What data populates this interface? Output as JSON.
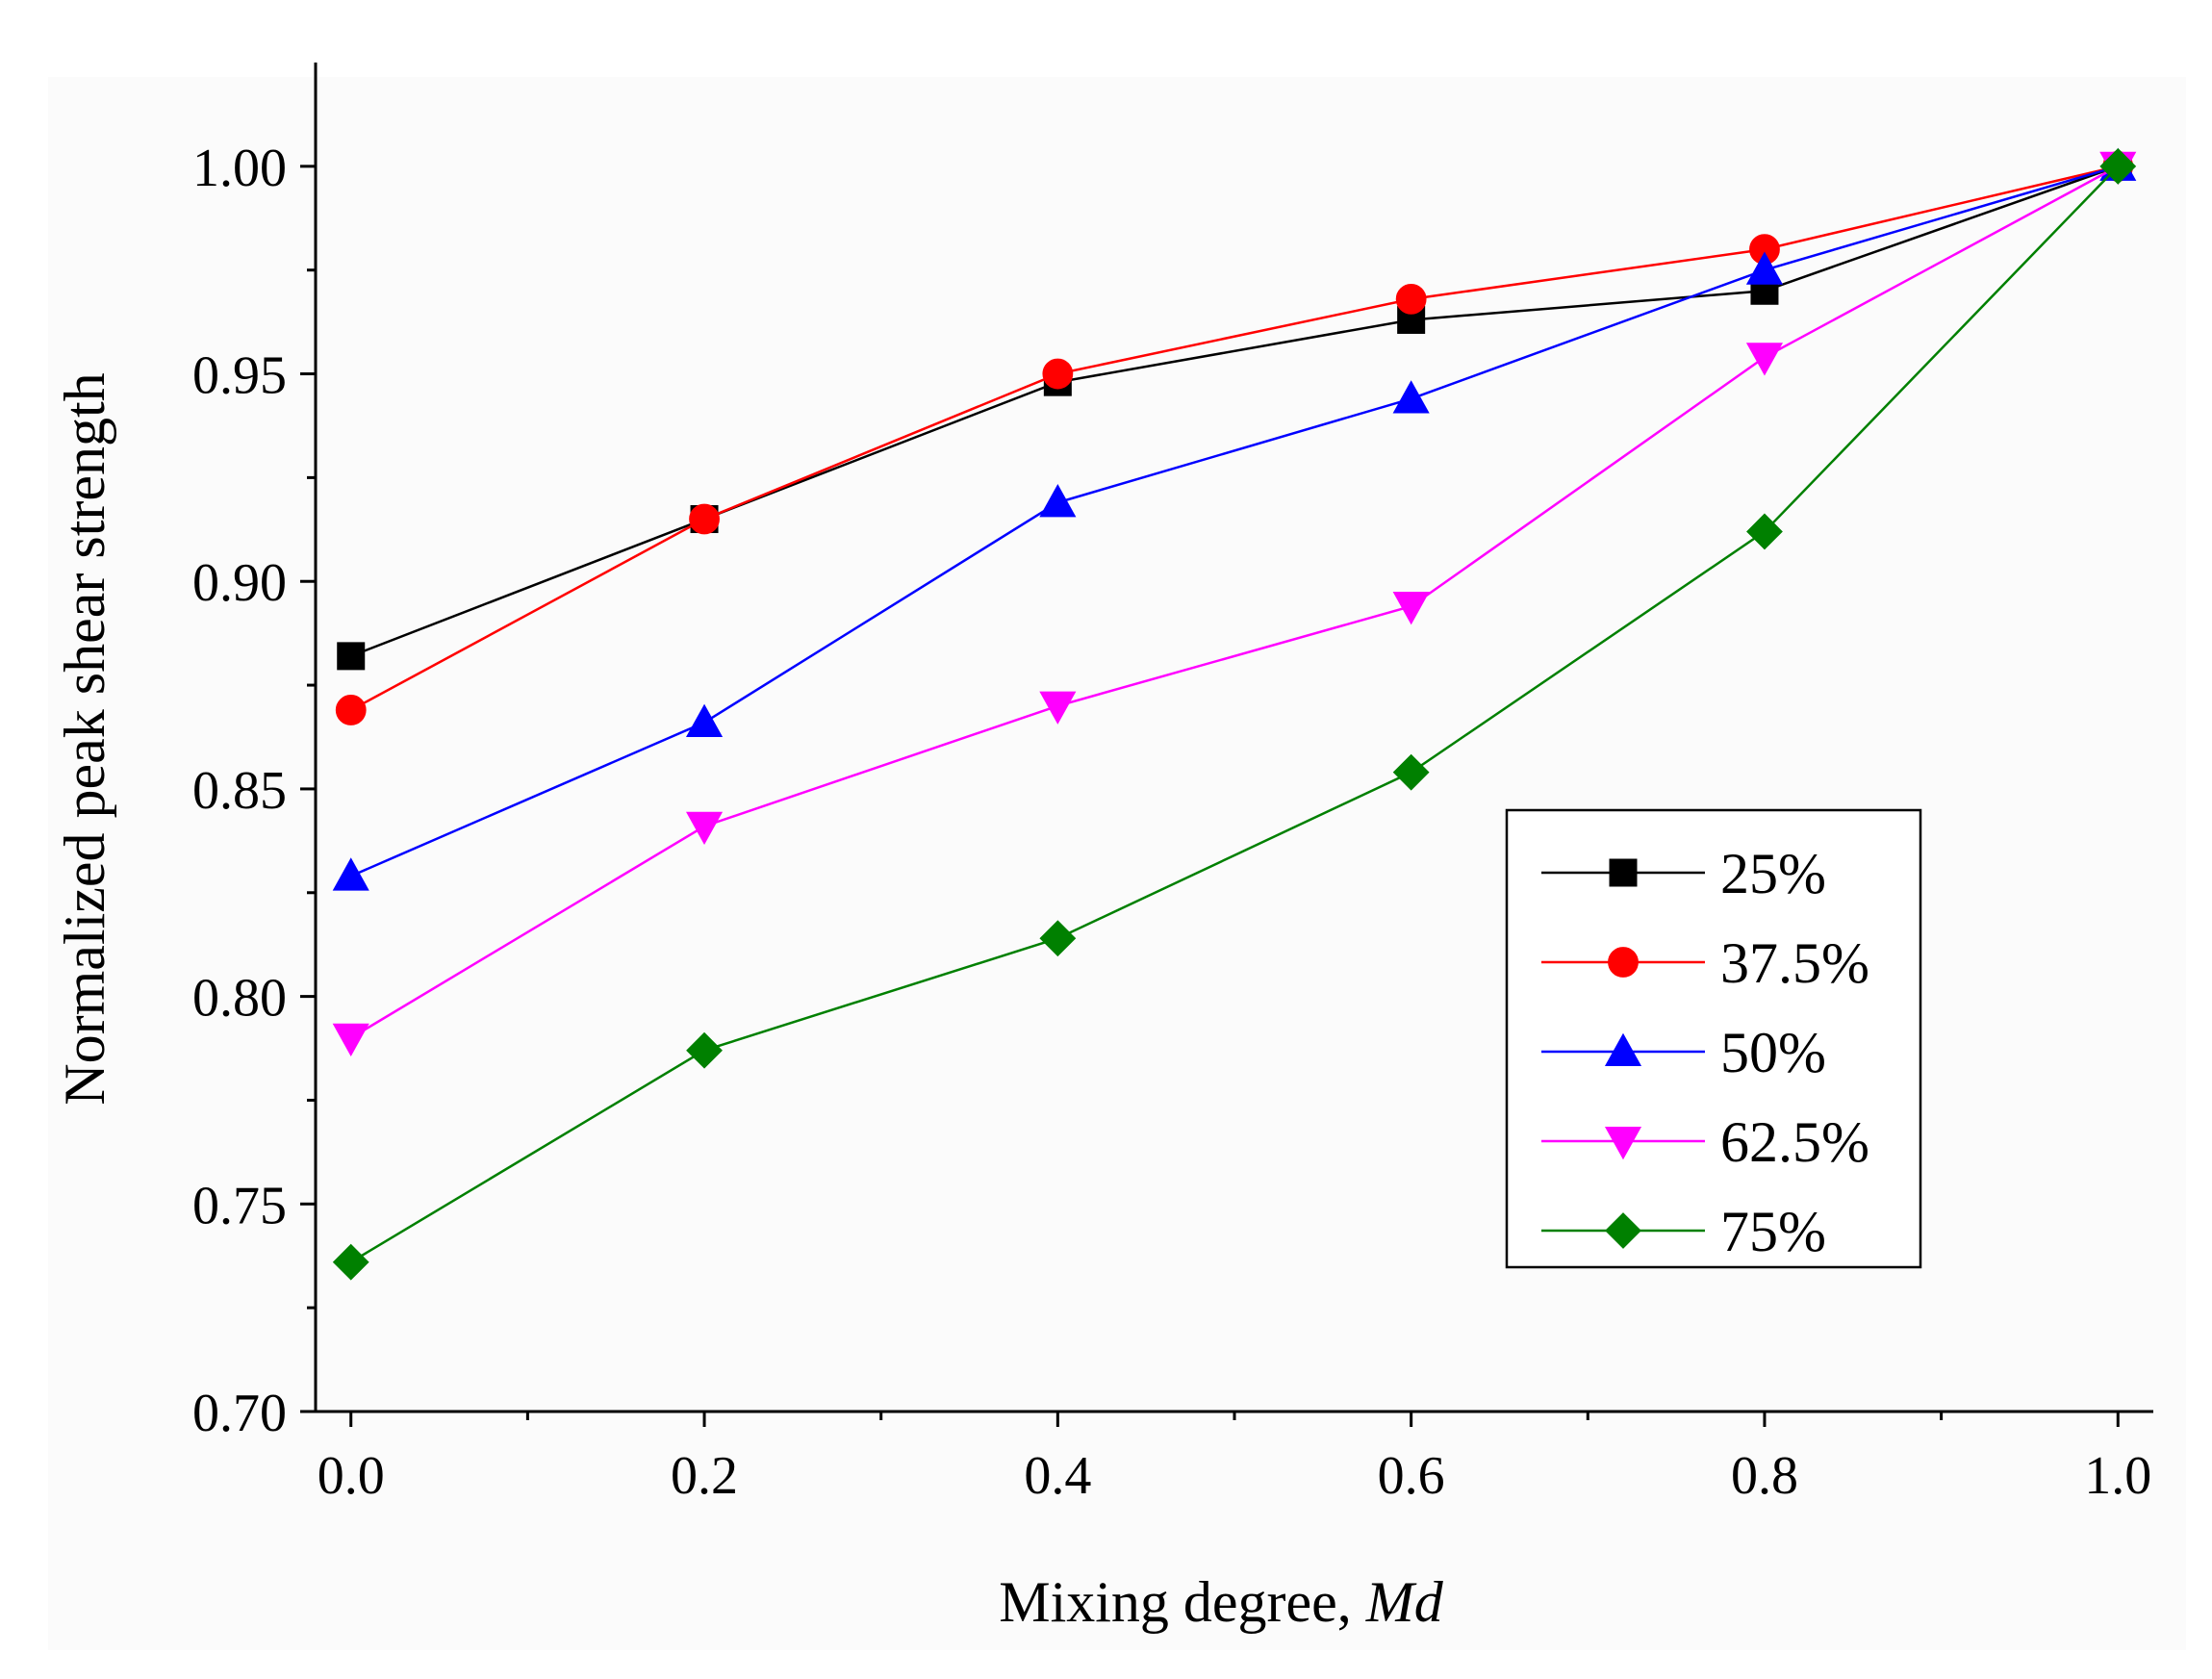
{
  "chart_data": {
    "type": "line",
    "title": "",
    "xlabel": "Mixing degree, ",
    "xlabel_italic": "Md",
    "ylabel": "Normalized peak shear strength",
    "xlim": [
      -0.02,
      1.02
    ],
    "ylim": [
      0.7,
      1.025
    ],
    "x_ticks": [
      0.0,
      0.2,
      0.4,
      0.6,
      0.8,
      1.0
    ],
    "x_tick_labels": [
      "0.0",
      "0.2",
      "0.4",
      "0.6",
      "0.8",
      "1.0"
    ],
    "y_ticks": [
      0.7,
      0.75,
      0.8,
      0.85,
      0.9,
      0.95,
      1.0
    ],
    "y_tick_labels": [
      "0.70",
      "0.75",
      "0.80",
      "0.85",
      "0.90",
      "0.95",
      "1.00"
    ],
    "grid": false,
    "legend_position": "bottom-right",
    "x": [
      0.0,
      0.2,
      0.4,
      0.6,
      0.8,
      1.0
    ],
    "series": [
      {
        "name": "25%",
        "marker": "square",
        "color": "#000000",
        "values": [
          0.882,
          0.915,
          0.948,
          0.963,
          0.97,
          1.0
        ]
      },
      {
        "name": "37.5%",
        "marker": "circle",
        "color": "#ff0000",
        "values": [
          0.869,
          0.915,
          0.95,
          0.968,
          0.98,
          1.0
        ]
      },
      {
        "name": "50%",
        "marker": "triangle-up",
        "color": "#0000ff",
        "values": [
          0.829,
          0.866,
          0.919,
          0.944,
          0.975,
          1.0
        ]
      },
      {
        "name": "62.5%",
        "marker": "triangle-down",
        "color": "#ff00ff",
        "values": [
          0.79,
          0.841,
          0.87,
          0.894,
          0.954,
          1.0
        ]
      },
      {
        "name": "75%",
        "marker": "diamond",
        "color": "#008000",
        "values": [
          0.736,
          0.787,
          0.814,
          0.854,
          0.912,
          1.0
        ]
      }
    ]
  }
}
